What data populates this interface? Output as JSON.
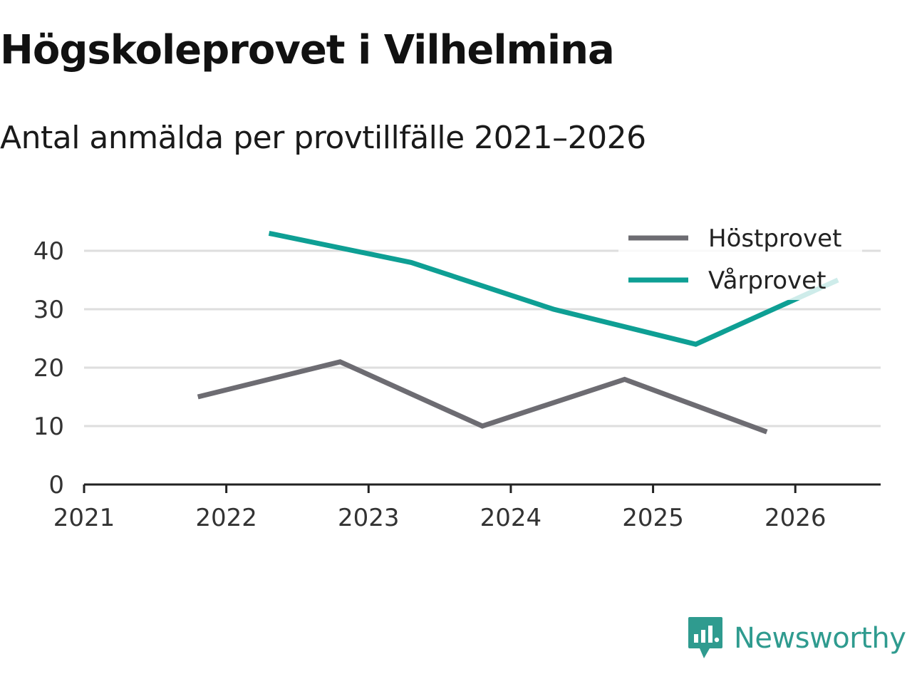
{
  "title": "Högskoleprovet i Vilhelmina",
  "subtitle": "Antal anmälda per provtillfälle 2021–2026",
  "brand": {
    "name": "Newsworthy",
    "icon": "newsworthy-logo-icon"
  },
  "chart_data": {
    "type": "line",
    "title": "Högskoleprovet i Vilhelmina",
    "subtitle": "Antal anmälda per provtillfälle 2021–2026",
    "xlabel": "",
    "ylabel": "",
    "xlim": [
      2021,
      2026.6
    ],
    "ylim": [
      0,
      45
    ],
    "x_ticks": [
      "2021",
      "2022",
      "2023",
      "2024",
      "2025",
      "2026"
    ],
    "y_ticks": [
      "0",
      "10",
      "20",
      "30",
      "40"
    ],
    "grid": true,
    "legend_position": "top-right",
    "series": [
      {
        "name": "Höstprovet",
        "color": "#6d6c72",
        "x": [
          2021.8,
          2022.8,
          2023.8,
          2024.8,
          2025.8
        ],
        "values": [
          15,
          21,
          10,
          18,
          9
        ]
      },
      {
        "name": "Vårprovet",
        "color": "#0e9f94",
        "x": [
          2022.3,
          2023.3,
          2024.3,
          2025.3,
          2026.3
        ],
        "values": [
          43,
          38,
          30,
          24,
          35
        ]
      }
    ]
  }
}
